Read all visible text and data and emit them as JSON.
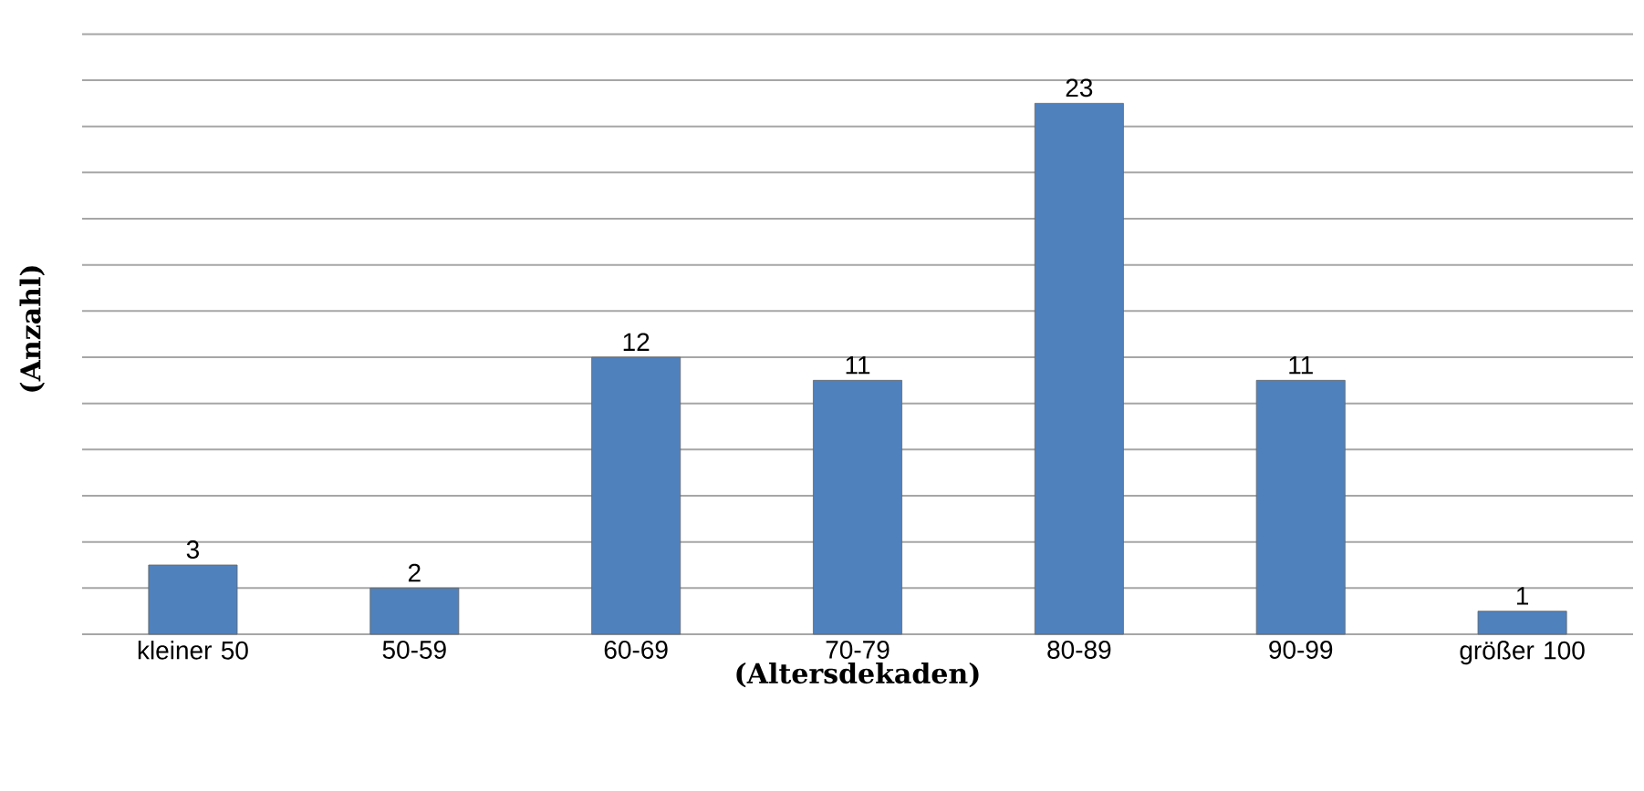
{
  "chart_data": {
    "type": "bar",
    "xlabel": "(Altersdekaden)",
    "ylabel": "(Anzahl)",
    "categories": [
      "kleiner 50",
      "50-59",
      "60-69",
      "70-79",
      "80-89",
      "90-99",
      "größer 100"
    ],
    "values": [
      3,
      2,
      12,
      11,
      23,
      11,
      1
    ],
    "color": "#4f81bd",
    "data_labels": true,
    "grid": "y",
    "tick_labels": "x"
  }
}
